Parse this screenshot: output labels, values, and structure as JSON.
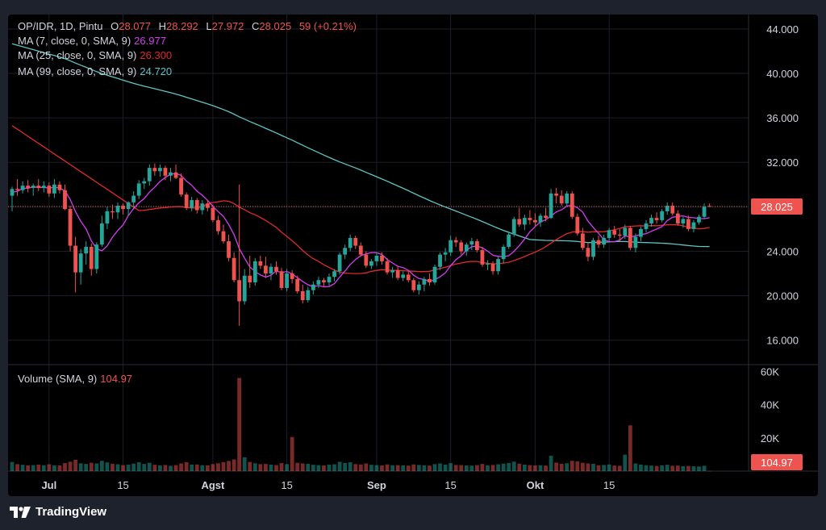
{
  "legend": {
    "symbol_line": "OP/IDR, 1D, Pintu",
    "o_label": "O",
    "o_value": "28.077",
    "h_label": "H",
    "h_value": "28.292",
    "l_label": "L",
    "l_value": "27.972",
    "c_label": "C",
    "c_value": "28.025",
    "change": "59 (+0.21%)",
    "ma7_label": "MA (7, close, 0, SMA, 9)",
    "ma7_value": "26.977",
    "ma25_label": "MA (25, close, 0, SMA, 9)",
    "ma25_value": "26.300",
    "ma99_label": "MA (99, close, 0, SMA, 9)",
    "ma99_value": "24.720",
    "volume_label": "Volume (SMA, 9)",
    "volume_value": "104.97"
  },
  "brand": {
    "name": "TradingView",
    "logo": "tradingview-logo-icon"
  },
  "colors": {
    "up": "#26a69a",
    "down": "#ef5350",
    "ma7": "#d63cf2",
    "ma25": "#e02a2a",
    "ma99": "#5ec4c4",
    "price_line": "#ef5350",
    "grid": "#1c1f28",
    "axis_text": "#d1d4dc"
  },
  "chart_data": {
    "type": "candlestick",
    "y_axis": {
      "ticks": [
        "44.000",
        "40.000",
        "36.000",
        "32.000",
        "28.000",
        "24.000",
        "20.000",
        "16.000"
      ],
      "tick_values": [
        44000,
        40000,
        36000,
        32000,
        28000,
        24000,
        20000,
        16000
      ],
      "range": [
        13800,
        45300
      ]
    },
    "volume_axis": {
      "ticks": [
        "60K",
        "40K",
        "20K"
      ],
      "tick_values": [
        60000,
        40000,
        20000
      ],
      "range": [
        0,
        64000
      ]
    },
    "x_axis": {
      "labels": [
        "Jul",
        "15",
        "Agst",
        "15",
        "Sep",
        "15",
        "Okt",
        "15"
      ],
      "label_bars": [
        7,
        21,
        38,
        52,
        69,
        83,
        99,
        113
      ]
    },
    "current_price_label": "28.025",
    "current_price": 28025,
    "current_volume_label": "104.97",
    "ma99_start": 42800,
    "candles": [
      [
        29000,
        29800,
        27600,
        29600,
        5500
      ],
      [
        29600,
        30500,
        29000,
        29500,
        4200
      ],
      [
        29500,
        30300,
        29200,
        29900,
        3800
      ],
      [
        29900,
        30400,
        29300,
        29700,
        3500
      ],
      [
        29700,
        30100,
        29000,
        29900,
        3600
      ],
      [
        29900,
        30500,
        29400,
        29700,
        3900
      ],
      [
        29700,
        30300,
        29300,
        29900,
        3500
      ],
      [
        29900,
        30200,
        28900,
        29200,
        4100
      ],
      [
        29200,
        30500,
        28800,
        30000,
        3500
      ],
      [
        30000,
        30300,
        29200,
        29500,
        3400
      ],
      [
        29500,
        30000,
        27700,
        27800,
        4800
      ],
      [
        27800,
        28100,
        24000,
        24500,
        5600
      ],
      [
        24500,
        25300,
        20300,
        22100,
        6800
      ],
      [
        22100,
        24200,
        21000,
        23800,
        4700
      ],
      [
        23800,
        24900,
        22800,
        24400,
        4300
      ],
      [
        24400,
        24700,
        21800,
        22400,
        5000
      ],
      [
        22400,
        24800,
        22000,
        24600,
        4600
      ],
      [
        24600,
        27200,
        24400,
        26500,
        6200
      ],
      [
        26500,
        28000,
        26000,
        27600,
        5200
      ],
      [
        27600,
        28200,
        26900,
        27500,
        4400
      ],
      [
        27500,
        28400,
        26900,
        28100,
        4100
      ],
      [
        28100,
        28300,
        27300,
        27800,
        3600
      ],
      [
        27800,
        28500,
        27200,
        28400,
        3900
      ],
      [
        28400,
        29400,
        27900,
        29000,
        4500
      ],
      [
        29000,
        30400,
        28700,
        30100,
        5300
      ],
      [
        30100,
        30600,
        29600,
        30300,
        4300
      ],
      [
        30300,
        31800,
        29900,
        31500,
        5000
      ],
      [
        31500,
        31900,
        30800,
        31200,
        3800
      ],
      [
        31200,
        31800,
        30700,
        31500,
        3400
      ],
      [
        31500,
        31700,
        30400,
        30800,
        3700
      ],
      [
        30800,
        31500,
        30300,
        31100,
        3200
      ],
      [
        31100,
        31800,
        30500,
        30600,
        3600
      ],
      [
        30600,
        31000,
        28900,
        29100,
        4600
      ],
      [
        29100,
        29300,
        27700,
        27900,
        5300
      ],
      [
        27900,
        28900,
        27600,
        28600,
        3900
      ],
      [
        28600,
        28800,
        27400,
        27700,
        4000
      ],
      [
        27700,
        28600,
        27300,
        28300,
        3500
      ],
      [
        28300,
        28600,
        27600,
        27900,
        3400
      ],
      [
        27900,
        28200,
        26600,
        26800,
        4200
      ],
      [
        26800,
        27200,
        25500,
        25800,
        4700
      ],
      [
        25800,
        26400,
        24700,
        24900,
        5400
      ],
      [
        24900,
        25500,
        23100,
        23400,
        6100
      ],
      [
        23400,
        23900,
        21200,
        21400,
        7000
      ],
      [
        21400,
        30000,
        17300,
        19500,
        56000
      ],
      [
        19500,
        22400,
        19200,
        21800,
        8300
      ],
      [
        21800,
        23600,
        20700,
        21200,
        5500
      ],
      [
        21200,
        23400,
        20900,
        23100,
        4700
      ],
      [
        23100,
        23600,
        22400,
        22700,
        4200
      ],
      [
        22700,
        23500,
        21600,
        22000,
        4300
      ],
      [
        22000,
        22900,
        21400,
        22600,
        3900
      ],
      [
        22600,
        23100,
        21900,
        22200,
        3600
      ],
      [
        22200,
        22500,
        20500,
        20700,
        4800
      ],
      [
        20700,
        22400,
        20400,
        22000,
        4200
      ],
      [
        22000,
        22300,
        21100,
        21500,
        20500
      ],
      [
        21500,
        21800,
        20200,
        20400,
        5000
      ],
      [
        20400,
        21000,
        19300,
        19600,
        4600
      ],
      [
        19600,
        20800,
        19400,
        20500,
        4400
      ],
      [
        20500,
        21300,
        20100,
        21000,
        3800
      ],
      [
        21000,
        21700,
        20700,
        21400,
        3600
      ],
      [
        21400,
        21600,
        20800,
        21200,
        3400
      ],
      [
        21200,
        22000,
        20900,
        21700,
        3900
      ],
      [
        21700,
        22400,
        21300,
        22200,
        4100
      ],
      [
        22200,
        23900,
        21900,
        23700,
        5600
      ],
      [
        23700,
        24600,
        23300,
        24300,
        4900
      ],
      [
        24300,
        25500,
        24000,
        25200,
        5300
      ],
      [
        25200,
        25400,
        24200,
        24500,
        4200
      ],
      [
        24500,
        24800,
        23500,
        23700,
        4000
      ],
      [
        23700,
        24000,
        22500,
        22700,
        4600
      ],
      [
        22700,
        23300,
        22400,
        23100,
        3800
      ],
      [
        23100,
        23900,
        22700,
        23600,
        3600
      ],
      [
        23600,
        23900,
        22800,
        23100,
        3400
      ],
      [
        23100,
        23400,
        21900,
        22100,
        4000
      ],
      [
        22100,
        22600,
        21600,
        22300,
        3500
      ],
      [
        22300,
        22700,
        21400,
        21600,
        3600
      ],
      [
        21600,
        22200,
        21300,
        21900,
        3400
      ],
      [
        21900,
        22200,
        21200,
        21400,
        3300
      ],
      [
        21400,
        21600,
        20300,
        20500,
        4000
      ],
      [
        20500,
        21300,
        20100,
        21000,
        3700
      ],
      [
        21000,
        21700,
        20400,
        21500,
        3500
      ],
      [
        21500,
        22000,
        20900,
        21200,
        3300
      ],
      [
        21200,
        22800,
        21000,
        22600,
        4200
      ],
      [
        22600,
        23900,
        22300,
        23700,
        4600
      ],
      [
        23700,
        24300,
        23100,
        23900,
        3900
      ],
      [
        23900,
        25400,
        23600,
        25000,
        4800
      ],
      [
        25000,
        25300,
        24400,
        24800,
        3700
      ],
      [
        24800,
        25000,
        23700,
        24000,
        3600
      ],
      [
        24000,
        24800,
        23600,
        24600,
        3400
      ],
      [
        24600,
        25200,
        24100,
        24900,
        3300
      ],
      [
        24900,
        25100,
        23900,
        24100,
        3600
      ],
      [
        24100,
        24400,
        22600,
        22800,
        4300
      ],
      [
        22800,
        23200,
        22300,
        22900,
        3500
      ],
      [
        22900,
        23100,
        21900,
        22200,
        3700
      ],
      [
        22200,
        23500,
        21900,
        23300,
        4100
      ],
      [
        23300,
        24600,
        22900,
        24400,
        4500
      ],
      [
        24400,
        25800,
        24200,
        25500,
        4900
      ],
      [
        25500,
        27100,
        25300,
        26900,
        5700
      ],
      [
        26900,
        27900,
        26200,
        26400,
        4500
      ],
      [
        26400,
        27300,
        25900,
        27000,
        3900
      ],
      [
        27000,
        27700,
        26400,
        26800,
        3600
      ],
      [
        26800,
        27400,
        26200,
        26600,
        3400
      ],
      [
        26600,
        27400,
        26200,
        27200,
        3500
      ],
      [
        27200,
        27900,
        26700,
        27000,
        3300
      ],
      [
        27000,
        29600,
        26900,
        29200,
        9200
      ],
      [
        29200,
        29700,
        28300,
        29000,
        5100
      ],
      [
        29000,
        29500,
        28100,
        28300,
        4400
      ],
      [
        28300,
        29400,
        28100,
        29200,
        4700
      ],
      [
        29200,
        29400,
        26900,
        27100,
        6200
      ],
      [
        27100,
        27400,
        25400,
        25600,
        5800
      ],
      [
        25600,
        26100,
        24100,
        24300,
        5000
      ],
      [
        24300,
        24800,
        23100,
        23500,
        4600
      ],
      [
        23500,
        25200,
        23200,
        25000,
        4400
      ],
      [
        25000,
        25400,
        24300,
        24600,
        3500
      ],
      [
        24600,
        25500,
        24300,
        25200,
        3700
      ],
      [
        25200,
        26100,
        24900,
        25900,
        4000
      ],
      [
        25900,
        26300,
        25200,
        25500,
        3300
      ],
      [
        25500,
        26000,
        24900,
        25400,
        3200
      ],
      [
        25400,
        26400,
        25100,
        26100,
        9900
      ],
      [
        26100,
        26300,
        24100,
        24300,
        27500
      ],
      [
        24300,
        25600,
        23900,
        25300,
        4600
      ],
      [
        25300,
        26200,
        24900,
        26000,
        3900
      ],
      [
        26000,
        26800,
        25700,
        26500,
        3500
      ],
      [
        26500,
        27300,
        26200,
        27000,
        3300
      ],
      [
        27000,
        27500,
        26500,
        26800,
        3100
      ],
      [
        26800,
        27800,
        26600,
        27600,
        3400
      ],
      [
        27600,
        28400,
        27300,
        28100,
        3800
      ],
      [
        28100,
        28400,
        27200,
        27400,
        3200
      ],
      [
        27400,
        27700,
        26300,
        26500,
        3300
      ],
      [
        26500,
        27100,
        26100,
        26900,
        3000
      ],
      [
        26900,
        27200,
        25800,
        26000,
        3100
      ],
      [
        26000,
        26800,
        25700,
        26600,
        2900
      ],
      [
        26600,
        27300,
        26400,
        27100,
        2800
      ],
      [
        27100,
        28300,
        26900,
        28000,
        3200
      ],
      [
        28077,
        28292,
        27972,
        28025,
        105
      ]
    ]
  }
}
